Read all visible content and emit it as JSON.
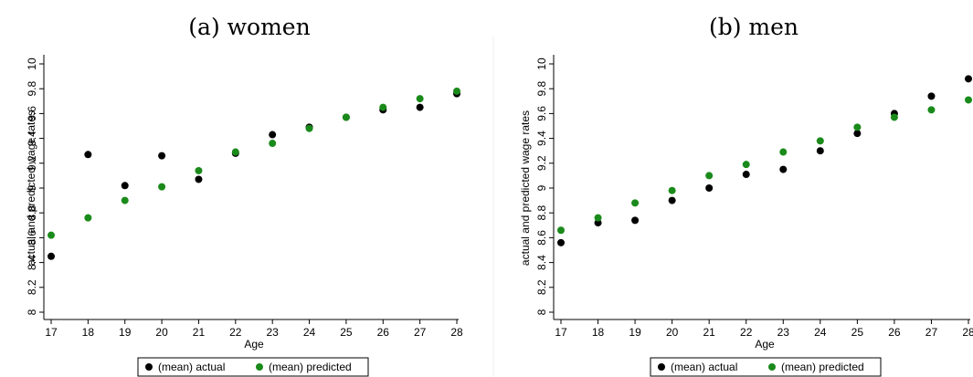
{
  "chart_data": [
    {
      "type": "scatter",
      "title": "(a) women",
      "xlabel": "Age",
      "ylabel": "actual and predicted wage rates",
      "xlim": [
        17,
        28
      ],
      "ylim": [
        8,
        10
      ],
      "x_ticks": [
        17,
        18,
        19,
        20,
        21,
        22,
        23,
        24,
        25,
        26,
        27,
        28
      ],
      "y_ticks": [
        8,
        8.2,
        8.4,
        8.6,
        8.8,
        9,
        9.2,
        9.4,
        9.6,
        9.8,
        10
      ],
      "y_tick_labels": [
        "8",
        "8.2",
        "8.4",
        "8.6",
        "8.8",
        "9",
        "9.2",
        "9.4",
        "9.6",
        "9.8",
        "10"
      ],
      "grid": false,
      "legend_position": "bottom",
      "x": [
        17,
        18,
        19,
        20,
        21,
        22,
        23,
        24,
        25,
        26,
        27,
        28
      ],
      "series": [
        {
          "name": "(mean) actual",
          "color": "#000000",
          "values": [
            8.45,
            9.27,
            9.02,
            9.26,
            9.07,
            9.28,
            9.43,
            9.49,
            9.57,
            9.63,
            9.65,
            9.76
          ]
        },
        {
          "name": "(mean) predicted",
          "color": "#1a8a1a",
          "values": [
            8.62,
            8.76,
            8.9,
            9.01,
            9.14,
            9.29,
            9.36,
            9.48,
            9.57,
            9.65,
            9.72,
            9.78
          ]
        }
      ]
    },
    {
      "type": "scatter",
      "title": "(b) men",
      "xlabel": "Age",
      "ylabel": "actual and predicted wage rates",
      "xlim": [
        17,
        28
      ],
      "ylim": [
        8,
        10
      ],
      "x_ticks": [
        17,
        18,
        19,
        20,
        21,
        22,
        23,
        24,
        25,
        26,
        27,
        28
      ],
      "y_ticks": [
        8,
        8.2,
        8.4,
        8.6,
        8.8,
        9,
        9.2,
        9.4,
        9.6,
        9.8,
        10
      ],
      "y_tick_labels": [
        "8",
        "8.2",
        "8.4",
        "8.6",
        "8.8",
        "9",
        "9.2",
        "9.4",
        "9.6",
        "9.8",
        "10"
      ],
      "grid": false,
      "legend_position": "bottom",
      "x": [
        17,
        18,
        19,
        20,
        21,
        22,
        23,
        24,
        25,
        26,
        27,
        28
      ],
      "series": [
        {
          "name": "(mean) actual",
          "color": "#000000",
          "values": [
            8.56,
            8.72,
            8.74,
            8.9,
            9.0,
            9.11,
            9.15,
            9.3,
            9.44,
            9.6,
            9.74,
            9.88
          ]
        },
        {
          "name": "(mean) predicted",
          "color": "#1a8a1a",
          "values": [
            8.66,
            8.76,
            8.88,
            8.98,
            9.1,
            9.19,
            9.29,
            9.38,
            9.49,
            9.57,
            9.63,
            9.71
          ]
        }
      ]
    }
  ]
}
